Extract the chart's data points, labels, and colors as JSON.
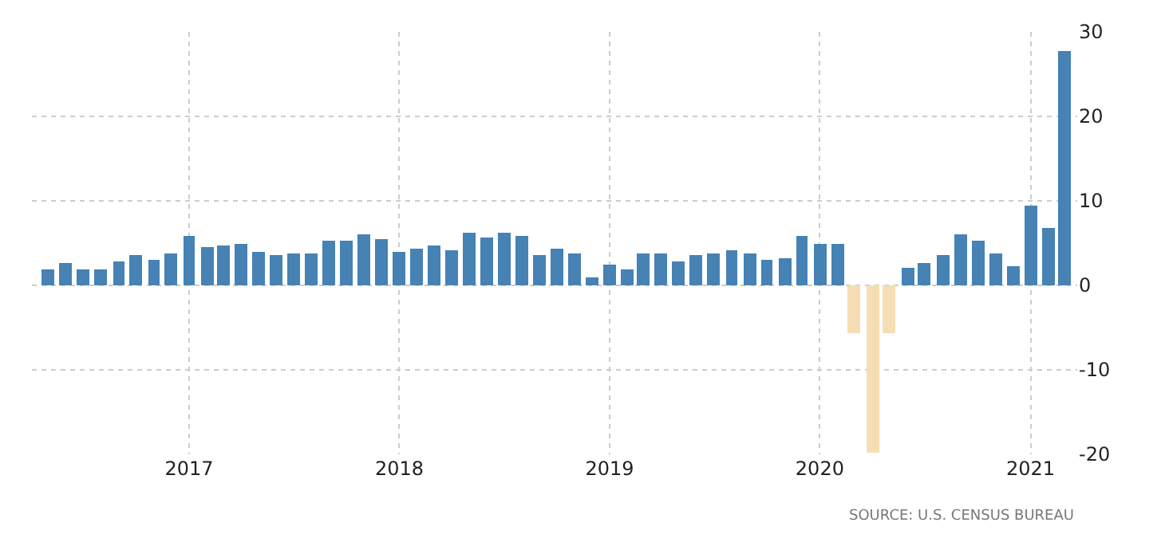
{
  "chart_data": {
    "type": "bar",
    "x": [
      "2016-05",
      "2016-06",
      "2016-07",
      "2016-08",
      "2016-09",
      "2016-10",
      "2016-11",
      "2016-12",
      "2017-01",
      "2017-02",
      "2017-03",
      "2017-04",
      "2017-05",
      "2017-06",
      "2017-07",
      "2017-08",
      "2017-09",
      "2017-10",
      "2017-11",
      "2017-12",
      "2018-01",
      "2018-02",
      "2018-03",
      "2018-04",
      "2018-05",
      "2018-06",
      "2018-07",
      "2018-08",
      "2018-09",
      "2018-10",
      "2018-11",
      "2018-12",
      "2019-01",
      "2019-02",
      "2019-03",
      "2019-04",
      "2019-05",
      "2019-06",
      "2019-07",
      "2019-08",
      "2019-09",
      "2019-10",
      "2019-11",
      "2019-12",
      "2020-01",
      "2020-02",
      "2020-03",
      "2020-04",
      "2020-05",
      "2020-06",
      "2020-07",
      "2020-08",
      "2020-09",
      "2020-10",
      "2020-11",
      "2020-12",
      "2021-01",
      "2021-02",
      "2021-03"
    ],
    "values": [
      1.9,
      2.7,
      1.9,
      1.9,
      2.9,
      3.5,
      3.1,
      3.8,
      5.8,
      4.6,
      4.8,
      5.0,
      4.0,
      3.5,
      3.7,
      3.7,
      5.2,
      5.2,
      6.0,
      5.4,
      4.0,
      4.4,
      4.8,
      4.2,
      6.2,
      5.6,
      6.2,
      5.8,
      3.5,
      4.4,
      3.7,
      1.0,
      2.5,
      1.9,
      3.7,
      3.8,
      2.9,
      3.5,
      3.7,
      4.2,
      3.7,
      3.1,
      3.3,
      5.8,
      4.9,
      4.9,
      -5.7,
      -19.9,
      -5.7,
      2.1,
      2.7,
      3.6,
      6.1,
      5.3,
      3.8,
      2.3,
      9.5,
      6.7,
      27.8
    ],
    "colors": [
      "#4682b4",
      "#4682b4",
      "#4682b4",
      "#4682b4",
      "#4682b4",
      "#4682b4",
      "#4682b4",
      "#4682b4",
      "#4682b4",
      "#4682b4",
      "#4682b4",
      "#4682b4",
      "#4682b4",
      "#4682b4",
      "#4682b4",
      "#4682b4",
      "#4682b4",
      "#4682b4",
      "#4682b4",
      "#4682b4",
      "#4682b4",
      "#4682b4",
      "#4682b4",
      "#4682b4",
      "#4682b4",
      "#4682b4",
      "#4682b4",
      "#4682b4",
      "#4682b4",
      "#4682b4",
      "#4682b4",
      "#4682b4",
      "#4682b4",
      "#4682b4",
      "#4682b4",
      "#4682b4",
      "#4682b4",
      "#4682b4",
      "#4682b4",
      "#4682b4",
      "#4682b4",
      "#4682b4",
      "#4682b4",
      "#4682b4",
      "#4682b4",
      "#4682b4",
      "#f5deb3",
      "#f5deb3",
      "#f5deb3",
      "#4682b4",
      "#4682b4",
      "#4682b4",
      "#4682b4",
      "#4682b4",
      "#4682b4",
      "#4682b4",
      "#4682b4",
      "#4682b4",
      "#4682b4"
    ],
    "xlim": [
      "2016-04-03",
      "2021-03-23"
    ],
    "xticks": [
      {
        "value": "2017-01",
        "label": "2017"
      },
      {
        "value": "2018-01",
        "label": "2018"
      },
      {
        "value": "2019-01",
        "label": "2019"
      },
      {
        "value": "2020-01",
        "label": "2020"
      },
      {
        "value": "2021-01",
        "label": "2021"
      }
    ],
    "ylim": [
      -20,
      30
    ],
    "yticks": [
      -20,
      -10,
      0,
      10,
      20,
      30
    ],
    "grid": true,
    "annotations": [
      "SOURCE: U.S. CENSUS BUREAU"
    ]
  }
}
